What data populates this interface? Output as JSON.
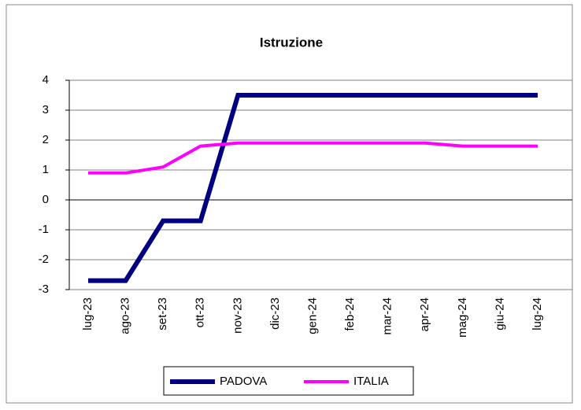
{
  "chart_data": {
    "type": "line",
    "title": "Istruzione",
    "categories": [
      "lug-23",
      "ago-23",
      "set-23",
      "ott-23",
      "nov-23",
      "dic-23",
      "gen-24",
      "feb-24",
      "mar-24",
      "apr-24",
      "mag-24",
      "giu-24",
      "lug-24"
    ],
    "series": [
      {
        "name": "PADOVA",
        "color": "#000080",
        "values": [
          -2.7,
          -2.7,
          -0.7,
          -0.7,
          3.5,
          3.5,
          3.5,
          3.5,
          3.5,
          3.5,
          3.5,
          3.5,
          3.5
        ]
      },
      {
        "name": "ITALIA",
        "color": "#ff00ff",
        "values": [
          0.9,
          0.9,
          1.1,
          1.8,
          1.9,
          1.9,
          1.9,
          1.9,
          1.9,
          1.9,
          1.8,
          1.8,
          1.8
        ]
      }
    ],
    "ylim": [
      -3,
      4
    ],
    "yticks": [
      -3,
      -2,
      -1,
      0,
      1,
      2,
      3,
      4
    ],
    "grid": true,
    "legend": "bottom"
  }
}
